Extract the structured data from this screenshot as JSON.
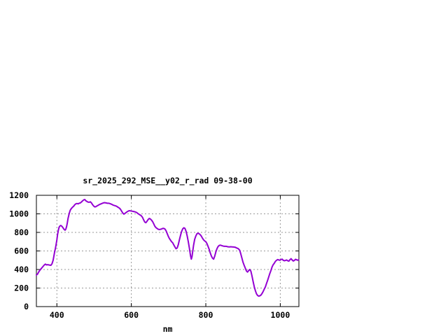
{
  "window": {
    "background": "#ffffff"
  },
  "chart_data": {
    "type": "line",
    "title": "sr_2025_292_MSE__y02_r_rad 09-38-00",
    "xlabel": "nm",
    "ylabel": "",
    "xlim": [
      345,
      1050
    ],
    "ylim": [
      0,
      1200
    ],
    "xticks": [
      400,
      600,
      800,
      1000
    ],
    "yticks": [
      0,
      200,
      400,
      600,
      800,
      1000,
      1200
    ],
    "grid": true,
    "legend": "none",
    "line_color": "#9400d3",
    "grid_color": "#999999",
    "border_color": "#000000",
    "text_color": "#000000",
    "series": [
      {
        "name": "sr_2025_292_MSE__y02_r_rad",
        "color": "#9400d3",
        "points": [
          [
            345,
            340
          ],
          [
            348,
            350
          ],
          [
            351,
            372
          ],
          [
            354,
            390
          ],
          [
            357,
            405
          ],
          [
            360,
            420
          ],
          [
            363,
            434
          ],
          [
            366,
            448
          ],
          [
            369,
            458
          ],
          [
            372,
            450
          ],
          [
            375,
            452
          ],
          [
            378,
            450
          ],
          [
            381,
            447
          ],
          [
            384,
            445
          ],
          [
            387,
            462
          ],
          [
            390,
            500
          ],
          [
            392,
            545
          ],
          [
            394,
            592
          ],
          [
            396,
            625
          ],
          [
            398,
            672
          ],
          [
            400,
            722
          ],
          [
            402,
            780
          ],
          [
            404,
            825
          ],
          [
            406,
            855
          ],
          [
            408,
            868
          ],
          [
            410,
            875
          ],
          [
            412,
            872
          ],
          [
            414,
            863
          ],
          [
            416,
            853
          ],
          [
            418,
            840
          ],
          [
            420,
            830
          ],
          [
            422,
            824
          ],
          [
            424,
            835
          ],
          [
            426,
            862
          ],
          [
            428,
            900
          ],
          [
            430,
            950
          ],
          [
            432,
            985
          ],
          [
            434,
            1015
          ],
          [
            436,
            1040
          ],
          [
            439,
            1058
          ],
          [
            442,
            1072
          ],
          [
            445,
            1082
          ],
          [
            448,
            1098
          ],
          [
            451,
            1108
          ],
          [
            454,
            1112
          ],
          [
            457,
            1108
          ],
          [
            460,
            1115
          ],
          [
            463,
            1118
          ],
          [
            466,
            1128
          ],
          [
            469,
            1140
          ],
          [
            472,
            1150
          ],
          [
            475,
            1155
          ],
          [
            478,
            1140
          ],
          [
            481,
            1133
          ],
          [
            484,
            1126
          ],
          [
            487,
            1125
          ],
          [
            490,
            1130
          ],
          [
            493,
            1118
          ],
          [
            496,
            1098
          ],
          [
            499,
            1084
          ],
          [
            502,
            1075
          ],
          [
            505,
            1078
          ],
          [
            508,
            1086
          ],
          [
            511,
            1093
          ],
          [
            514,
            1100
          ],
          [
            517,
            1105
          ],
          [
            520,
            1110
          ],
          [
            524,
            1117
          ],
          [
            528,
            1121
          ],
          [
            532,
            1118
          ],
          [
            536,
            1114
          ],
          [
            540,
            1114
          ],
          [
            544,
            1108
          ],
          [
            548,
            1101
          ],
          [
            552,
            1093
          ],
          [
            556,
            1088
          ],
          [
            560,
            1082
          ],
          [
            564,
            1072
          ],
          [
            568,
            1062
          ],
          [
            571,
            1048
          ],
          [
            574,
            1028
          ],
          [
            577,
            1008
          ],
          [
            580,
            997
          ],
          [
            583,
            1005
          ],
          [
            586,
            1014
          ],
          [
            590,
            1026
          ],
          [
            594,
            1034
          ],
          [
            598,
            1032
          ],
          [
            602,
            1029
          ],
          [
            606,
            1026
          ],
          [
            610,
            1021
          ],
          [
            614,
            1015
          ],
          [
            618,
            1002
          ],
          [
            622,
            992
          ],
          [
            626,
            982
          ],
          [
            630,
            962
          ],
          [
            633,
            935
          ],
          [
            636,
            912
          ],
          [
            639,
            905
          ],
          [
            642,
            920
          ],
          [
            645,
            938
          ],
          [
            648,
            950
          ],
          [
            651,
            945
          ],
          [
            654,
            933
          ],
          [
            657,
            916
          ],
          [
            660,
            893
          ],
          [
            663,
            868
          ],
          [
            666,
            852
          ],
          [
            669,
            843
          ],
          [
            672,
            835
          ],
          [
            675,
            831
          ],
          [
            678,
            833
          ],
          [
            681,
            836
          ],
          [
            684,
            842
          ],
          [
            687,
            843
          ],
          [
            690,
            838
          ],
          [
            693,
            820
          ],
          [
            696,
            790
          ],
          [
            699,
            760
          ],
          [
            702,
            735
          ],
          [
            705,
            718
          ],
          [
            708,
            700
          ],
          [
            711,
            688
          ],
          [
            714,
            665
          ],
          [
            717,
            643
          ],
          [
            720,
            624
          ],
          [
            723,
            632
          ],
          [
            726,
            668
          ],
          [
            729,
            720
          ],
          [
            732,
            768
          ],
          [
            735,
            808
          ],
          [
            738,
            838
          ],
          [
            741,
            850
          ],
          [
            744,
            843
          ],
          [
            747,
            812
          ],
          [
            750,
            762
          ],
          [
            753,
            700
          ],
          [
            756,
            628
          ],
          [
            759,
            548
          ],
          [
            761,
            512
          ],
          [
            763,
            538
          ],
          [
            765,
            600
          ],
          [
            767,
            660
          ],
          [
            770,
            725
          ],
          [
            773,
            760
          ],
          [
            776,
            785
          ],
          [
            779,
            792
          ],
          [
            782,
            786
          ],
          [
            785,
            775
          ],
          [
            788,
            760
          ],
          [
            791,
            738
          ],
          [
            794,
            720
          ],
          [
            797,
            708
          ],
          [
            800,
            700
          ],
          [
            803,
            680
          ],
          [
            806,
            650
          ],
          [
            809,
            618
          ],
          [
            812,
            578
          ],
          [
            815,
            545
          ],
          [
            818,
            522
          ],
          [
            821,
            512
          ],
          [
            824,
            545
          ],
          [
            827,
            590
          ],
          [
            830,
            625
          ],
          [
            833,
            648
          ],
          [
            836,
            660
          ],
          [
            839,
            663
          ],
          [
            843,
            657
          ],
          [
            847,
            652
          ],
          [
            851,
            650
          ],
          [
            855,
            650
          ],
          [
            859,
            645
          ],
          [
            863,
            644
          ],
          [
            867,
            645
          ],
          [
            871,
            644
          ],
          [
            875,
            642
          ],
          [
            879,
            640
          ],
          [
            883,
            632
          ],
          [
            887,
            625
          ],
          [
            891,
            608
          ],
          [
            894,
            568
          ],
          [
            897,
            522
          ],
          [
            900,
            478
          ],
          [
            903,
            445
          ],
          [
            906,
            415
          ],
          [
            909,
            385
          ],
          [
            912,
            372
          ],
          [
            915,
            388
          ],
          [
            918,
            400
          ],
          [
            921,
            382
          ],
          [
            924,
            330
          ],
          [
            927,
            270
          ],
          [
            930,
            215
          ],
          [
            933,
            172
          ],
          [
            936,
            138
          ],
          [
            939,
            120
          ],
          [
            942,
            113
          ],
          [
            945,
            116
          ],
          [
            948,
            124
          ],
          [
            951,
            140
          ],
          [
            954,
            162
          ],
          [
            957,
            188
          ],
          [
            960,
            212
          ],
          [
            963,
            248
          ],
          [
            966,
            282
          ],
          [
            969,
            320
          ],
          [
            972,
            358
          ],
          [
            975,
            390
          ],
          [
            978,
            428
          ],
          [
            981,
            452
          ],
          [
            984,
            468
          ],
          [
            987,
            488
          ],
          [
            990,
            500
          ],
          [
            993,
            507
          ],
          [
            996,
            503
          ],
          [
            999,
            500
          ],
          [
            1002,
            508
          ],
          [
            1005,
            512
          ],
          [
            1008,
            499
          ],
          [
            1011,
            494
          ],
          [
            1014,
            498
          ],
          [
            1017,
            503
          ],
          [
            1020,
            494
          ],
          [
            1023,
            490
          ],
          [
            1026,
            506
          ],
          [
            1029,
            516
          ],
          [
            1032,
            503
          ],
          [
            1035,
            491
          ],
          [
            1038,
            498
          ],
          [
            1041,
            510
          ],
          [
            1044,
            504
          ],
          [
            1047,
            500
          ],
          [
            1049,
            505
          ]
        ]
      }
    ]
  }
}
